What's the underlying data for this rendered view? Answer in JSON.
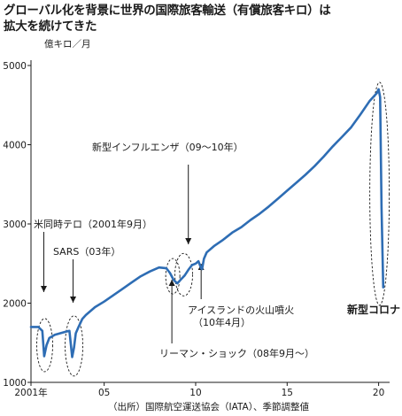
{
  "chart_data": {
    "type": "line",
    "title_line1": "グローバル化を背景に世界の国際旅客輸送（有償旅客キロ）は",
    "title_line2": "拡大を続けてきた",
    "unit_label": "億キロ／月",
    "source": "（出所）国際航空運送協会（IATA）、季節調整値",
    "ylim": [
      1000,
      5000
    ],
    "xlim": [
      2001,
      2020.6
    ],
    "y_ticks": [
      "1000",
      "2000",
      "3000",
      "4000",
      "5000"
    ],
    "x_ticks": [
      {
        "label": "2001年",
        "value": 2001
      },
      {
        "label": "05",
        "value": 2005
      },
      {
        "label": "10",
        "value": 2010
      },
      {
        "label": "15",
        "value": 2015
      },
      {
        "label": "20",
        "value": 2020
      }
    ],
    "grid": false,
    "line_color": "#2e6db4",
    "series": [
      {
        "x": [
          2001.0,
          2001.4,
          2001.62,
          2001.72,
          2001.85,
          2002.0,
          2002.3,
          2002.6,
          2002.9,
          2003.1,
          2003.25,
          2003.35,
          2003.45,
          2003.6,
          2003.8,
          2004.0,
          2004.5,
          2005.0,
          2005.5,
          2006.0,
          2006.5,
          2007.0,
          2007.5,
          2008.0,
          2008.4,
          2008.6,
          2008.8,
          2009.0,
          2009.2,
          2009.4,
          2009.6,
          2009.8,
          2010.0,
          2010.15,
          2010.3,
          2010.35,
          2010.45,
          2010.6,
          2011.0,
          2011.5,
          2012.0,
          2012.5,
          2013.0,
          2013.5,
          2014.0,
          2014.5,
          2015.0,
          2015.5,
          2016.0,
          2016.5,
          2017.0,
          2017.5,
          2018.0,
          2018.5,
          2019.0,
          2019.5,
          2019.9,
          2020.0,
          2020.08,
          2020.16,
          2020.25
        ],
        "y": [
          1700,
          1700,
          1650,
          1330,
          1470,
          1560,
          1600,
          1620,
          1640,
          1650,
          1320,
          1440,
          1620,
          1700,
          1800,
          1850,
          1950,
          2020,
          2100,
          2180,
          2260,
          2340,
          2400,
          2450,
          2440,
          2380,
          2290,
          2250,
          2300,
          2350,
          2420,
          2480,
          2500,
          2530,
          2440,
          2430,
          2560,
          2640,
          2720,
          2800,
          2890,
          2960,
          3050,
          3130,
          3220,
          3320,
          3420,
          3520,
          3620,
          3730,
          3850,
          3980,
          4100,
          4220,
          4380,
          4550,
          4650,
          4700,
          4600,
          3200,
          2200
        ]
      }
    ],
    "annotations": [
      {
        "text": "米同時テロ（2001年9月）",
        "x": 2001.7,
        "y": 1330
      },
      {
        "text": "SARS（03年）",
        "x": 2003.3,
        "y": 1320
      },
      {
        "text": "新型インフルエンザ（09〜10年）",
        "x": 2009.6,
        "y": 2400
      },
      {
        "text": "アイスランドの火山噴火",
        "text2": "（10年4月）",
        "x": 2010.3,
        "y": 2440
      },
      {
        "text": "リーマン・ショック（08年9月〜）",
        "x": 2008.7,
        "y": 2290
      },
      {
        "text": "新型コロナ",
        "x": 2020.2,
        "y": 2200
      }
    ]
  }
}
